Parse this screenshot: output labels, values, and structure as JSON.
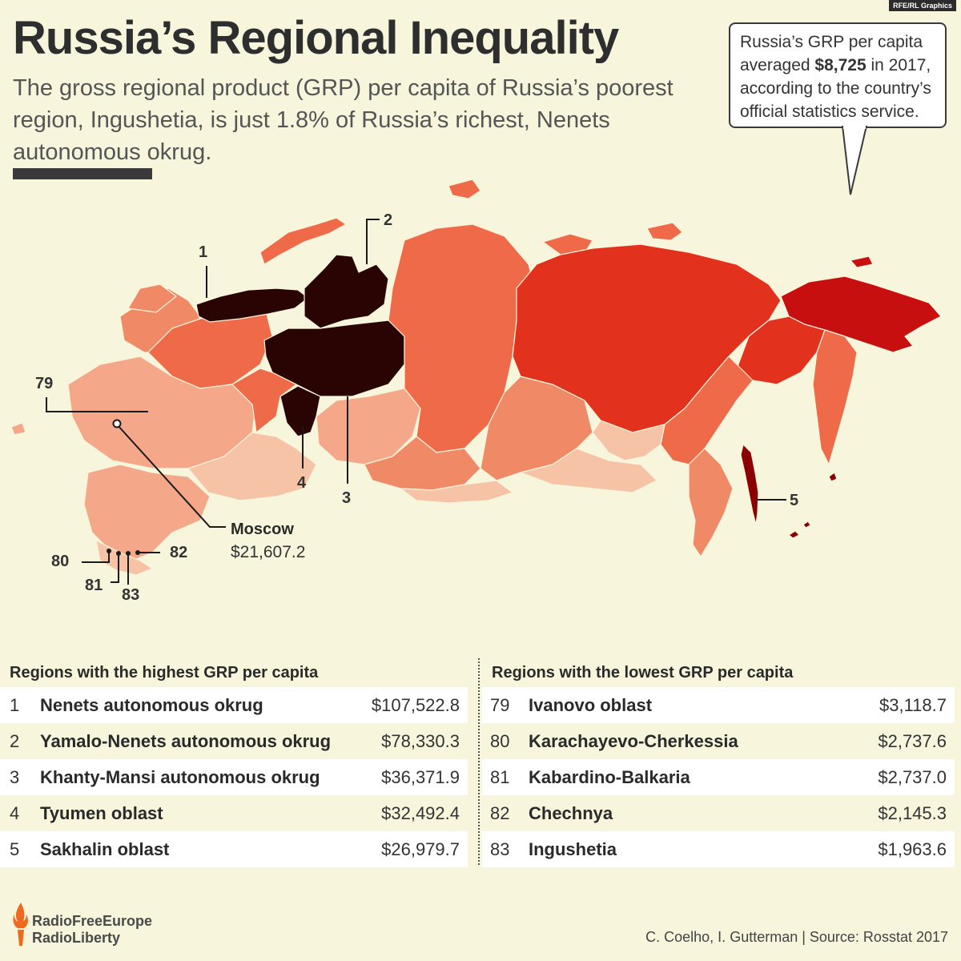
{
  "header": {
    "brand_tag": "RFE/RL Graphics",
    "title": "Russia’s Regional Inequality",
    "subtitle": "The gross regional product (GRP) per capita of Russia’s poorest region, Ingushetia, is just 1.8% of Russia’s richest, Nenets autonomous okrug."
  },
  "callout": {
    "line_prefix": "Russia’s GRP per capita averaged ",
    "highlight": "$8,725",
    "line_suffix": " in 2017, according to the country’s official statistics service."
  },
  "map": {
    "labels": {
      "r1": "1",
      "r2": "2",
      "r3": "3",
      "r4": "4",
      "r5": "5",
      "r79": "79",
      "r80": "80",
      "r81": "81",
      "r82": "82",
      "r83": "83"
    },
    "moscow": {
      "label": "Moscow",
      "value": "$21,607.2"
    },
    "colors": {
      "darkest": "#2a0303",
      "dark_red": "#8b0000",
      "red": "#c80f0f",
      "bright_red": "#e2321e",
      "orange": "#ef6a48",
      "mid_orange": "#f08a66",
      "light": "#f4a889",
      "lightest": "#f6c3a6"
    }
  },
  "tables": {
    "high": {
      "heading": "Regions with the highest GRP per capita",
      "rows": [
        {
          "rank": "1",
          "name": "Nenets autonomous okrug",
          "value": "$107,522.8"
        },
        {
          "rank": "2",
          "name": "Yamalo-Nenets autonomous okrug",
          "value": "$78,330.3"
        },
        {
          "rank": "3",
          "name": "Khanty-Mansi autonomous okrug",
          "value": "$36,371.9"
        },
        {
          "rank": "4",
          "name": "Tyumen oblast",
          "value": "$32,492.4"
        },
        {
          "rank": "5",
          "name": "Sakhalin oblast",
          "value": "$26,979.7"
        }
      ]
    },
    "low": {
      "heading": "Regions with the lowest GRP per capita",
      "rows": [
        {
          "rank": "79",
          "name": "Ivanovo oblast",
          "value": "$3,118.7"
        },
        {
          "rank": "80",
          "name": "Karachayevo-Cherkessia",
          "value": "$2,737.6"
        },
        {
          "rank": "81",
          "name": "Kabardino-Balkaria",
          "value": "$2,737.0"
        },
        {
          "rank": "82",
          "name": "Chechnya",
          "value": "$2,145.3"
        },
        {
          "rank": "83",
          "name": "Ingushetia",
          "value": "$1,963.6"
        }
      ]
    }
  },
  "footer": {
    "logo_line1": "RadioFreeEurope",
    "logo_line2": "RadioLiberty",
    "credit": "C. Coelho, I. Gutterman | Source: Rosstat 2017",
    "logo_icon": "torch-flame-icon"
  }
}
